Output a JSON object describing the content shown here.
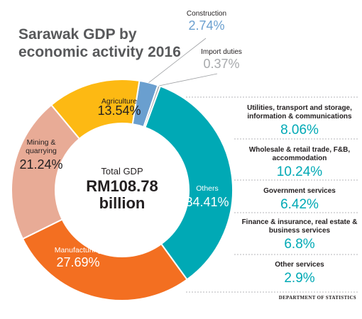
{
  "colors": {
    "construction": "#6a9fcf",
    "import_duties": "#a7a9ac",
    "others": "#00a9b5",
    "manufacturing": "#f36f21",
    "mining": "#e8ab96",
    "agriculture": "#fdb913",
    "title": "#58595b"
  },
  "chart_data": {
    "type": "pie",
    "style": "donut",
    "title": "Sarawak GDP by economic activity 2016",
    "center": {
      "label": "Total GDP",
      "value_line1": "RM108.78",
      "value_line2": "billion"
    },
    "slices": [
      {
        "label": "Construction",
        "value": 2.74,
        "display": "2.74%",
        "color": "#6a9fcf",
        "label_position": "outside"
      },
      {
        "label": "Import duties",
        "value": 0.37,
        "display": "0.37%",
        "color": "#a7a9ac",
        "label_position": "outside"
      },
      {
        "label": "Others",
        "value": 34.41,
        "display": "34.41%",
        "color": "#00a9b5",
        "label_position": "inside"
      },
      {
        "label": "Manufacturing",
        "value": 27.69,
        "display": "27.69%",
        "color": "#f36f21",
        "label_position": "inside"
      },
      {
        "label": "Mining & quarrying",
        "value": 21.24,
        "display": "21.24%",
        "color": "#e8ab96",
        "label_position": "inside"
      },
      {
        "label": "Agriculture",
        "value": 13.54,
        "display": "13.54%",
        "color": "#fdb913",
        "label_position": "inside"
      }
    ],
    "others_breakdown": [
      {
        "label": "Utilities, transport and storage, information & communications",
        "value": 8.06,
        "display": "8.06%"
      },
      {
        "label": "Wholesale & retail trade, F&B, accommodation",
        "value": 10.24,
        "display": "10.24%"
      },
      {
        "label": "Government services",
        "value": 6.42,
        "display": "6.42%"
      },
      {
        "label": "Finance & insurance, real estate & business services",
        "value": 6.8,
        "display": "6.8%"
      },
      {
        "label": "Other services",
        "value": 2.9,
        "display": "2.9%"
      }
    ],
    "source": "DEPARTMENT OF STATISTICS"
  }
}
